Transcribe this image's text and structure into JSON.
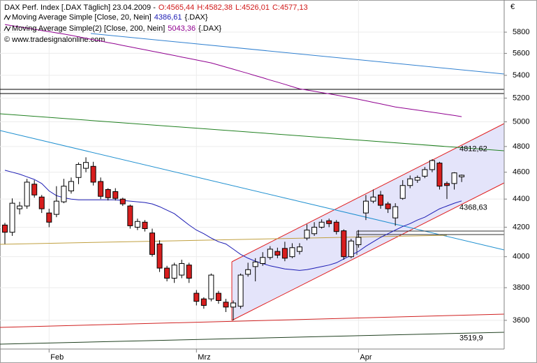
{
  "chart_data": {
    "type": "candlestick",
    "title": "DAX Perf. Index [.DAX  Täglich] 23.04.2009 -",
    "ohlc_labels": [
      "O:4565,44",
      "H:4582,38",
      "L:4526,01",
      "C:4577,13"
    ],
    "ohlc_color": "#d01818",
    "copyright": "© www.tradesignalonline.com",
    "currency": "€",
    "log_scale": true,
    "grid": true,
    "ylim": [
      3433,
      6117
    ],
    "yticks": [
      3600,
      3800,
      4000,
      4200,
      4400,
      4600,
      4800,
      5000,
      5200,
      5400,
      5600,
      5800
    ],
    "categories": [
      null,
      null,
      null,
      null,
      null,
      null,
      "Feb",
      null,
      null,
      null,
      null,
      null,
      null,
      null,
      null,
      null,
      null,
      null,
      null,
      null,
      null,
      null,
      null,
      null,
      null,
      null,
      "Mrz",
      null,
      null,
      null,
      null,
      null,
      null,
      null,
      null,
      null,
      null,
      null,
      null,
      null,
      null,
      null,
      null,
      null,
      null,
      null,
      null,
      null,
      "Apr",
      null,
      null,
      null,
      null,
      null,
      null,
      null,
      null,
      null,
      null,
      null,
      null,
      null,
      null
    ],
    "open": [
      4215,
      4165,
      4330,
      4350,
      4510,
      4415,
      4300,
      4290,
      4380,
      4460,
      4560,
      4630,
      4645,
      4530,
      4470,
      4455,
      4400,
      4350,
      4200,
      4235,
      4160,
      4085,
      3925,
      3860,
      3880,
      3945,
      3765,
      3730,
      3730,
      3765,
      3710,
      3680,
      3685,
      3885,
      3935,
      3955,
      3995,
      4035,
      4055,
      4000,
      4035,
      4125,
      4155,
      4200,
      4245,
      4235,
      4175,
      4000,
      4080,
      4300,
      4385,
      4430,
      4365,
      4265,
      4405,
      4500,
      4540,
      4570,
      4620,
      4670,
      4515,
      4515,
      4565.44
    ],
    "high": [
      4230,
      4405,
      4380,
      4550,
      4540,
      4430,
      4330,
      4495,
      4550,
      4560,
      4675,
      4715,
      4680,
      4560,
      4480,
      4480,
      4410,
      4360,
      4260,
      4250,
      4190,
      4110,
      3940,
      3960,
      3980,
      3960,
      3785,
      3740,
      3890,
      3780,
      3730,
      3720,
      3890,
      3960,
      3990,
      4030,
      4070,
      4060,
      4100,
      4090,
      4090,
      4220,
      4235,
      4255,
      4260,
      4250,
      4185,
      4120,
      4180,
      4430,
      4470,
      4460,
      4380,
      4370,
      4540,
      4575,
      4575,
      4640,
      4700,
      4680,
      4530,
      4600,
      4582.38
    ],
    "low": [
      4085,
      4140,
      4290,
      4330,
      4410,
      4300,
      4200,
      4270,
      4370,
      4440,
      4510,
      4600,
      4500,
      4400,
      4390,
      4390,
      4350,
      4190,
      4180,
      4170,
      4000,
      3900,
      3840,
      3830,
      3860,
      3830,
      3690,
      3670,
      3715,
      3700,
      3650,
      3600,
      3670,
      3870,
      3840,
      3940,
      3980,
      3990,
      3970,
      3990,
      4015,
      4110,
      4140,
      4190,
      4200,
      4150,
      3980,
      3990,
      4060,
      4250,
      4370,
      4330,
      4300,
      4210,
      4395,
      4480,
      4520,
      4555,
      4600,
      4470,
      4400,
      4470,
      4526.01
    ],
    "close": [
      4165,
      4370,
      4350,
      4525,
      4430,
      4330,
      4235,
      4385,
      4495,
      4530,
      4660,
      4675,
      4525,
      4420,
      4410,
      4405,
      4365,
      4210,
      4240,
      4190,
      4015,
      3925,
      3860,
      3945,
      3955,
      3860,
      3715,
      3690,
      3880,
      3720,
      3680,
      3705,
      3880,
      3915,
      3965,
      3995,
      4050,
      4010,
      3990,
      4060,
      4065,
      4180,
      4200,
      4235,
      4225,
      4170,
      4000,
      4105,
      4130,
      4385,
      4415,
      4355,
      4330,
      4345,
      4500,
      4550,
      4560,
      4620,
      4690,
      4495,
      4500,
      4595,
      4577.13
    ],
    "up_color": "#ffffff",
    "down_color": "#d81e1e",
    "series": [
      {
        "name": "Moving Average Simple [Close, 20, Nein]",
        "value_label": "4386,61",
        "suffix": "{.DAX}",
        "color": "#1c1cb4",
        "values": [
          4615,
          4600,
          4585,
          4565,
          4545,
          4515,
          4460,
          4425,
          4410,
          4400,
          4395,
          4395,
          4395,
          4395,
          4395,
          4395,
          4390,
          4385,
          4380,
          4375,
          4365,
          4345,
          4320,
          4295,
          4255,
          4215,
          4180,
          4155,
          4125,
          4100,
          4085,
          4050,
          4015,
          3990,
          3970,
          3955,
          3940,
          3930,
          3920,
          3915,
          3910,
          3915,
          3925,
          3935,
          3945,
          3960,
          3985,
          4010,
          4035,
          4070,
          4100,
          4130,
          4155,
          4180,
          4205,
          4225,
          4250,
          4270,
          4300,
          4330,
          4350,
          4370,
          4386.61
        ]
      },
      {
        "name": "Moving Average Simple(2) [Close, 200, Nein]",
        "value_label": "5043,36",
        "suffix": "{.DAX}",
        "color": "#900090",
        "values": [
          5874,
          5862,
          5851,
          5839,
          5828,
          5816,
          5805,
          5793,
          5782,
          5770,
          5755,
          5742,
          5728,
          5715,
          5701,
          5688,
          5674,
          5661,
          5647,
          5634,
          5620,
          5607,
          5593,
          5580,
          5566,
          5553,
          5539,
          5526,
          5512,
          5493,
          5474,
          5455,
          5436,
          5417,
          5397,
          5378,
          5358,
          5339,
          5320,
          5300,
          5281,
          5270,
          5259,
          5248,
          5237,
          5226,
          5214,
          5203,
          5190,
          5177,
          5164,
          5151,
          5138,
          5125,
          5116,
          5107,
          5098,
          5089,
          5080,
          5071,
          5062,
          5053,
          5043.36
        ]
      }
    ],
    "annotations": [
      {
        "text": "4812,62",
        "value": 4812.62,
        "color": "#c83232"
      },
      {
        "text": "4368,63",
        "value": 4368.63,
        "color": "#c83232"
      },
      {
        "text": "3519,9",
        "value": 3519.9,
        "color": "#404040"
      }
    ]
  }
}
